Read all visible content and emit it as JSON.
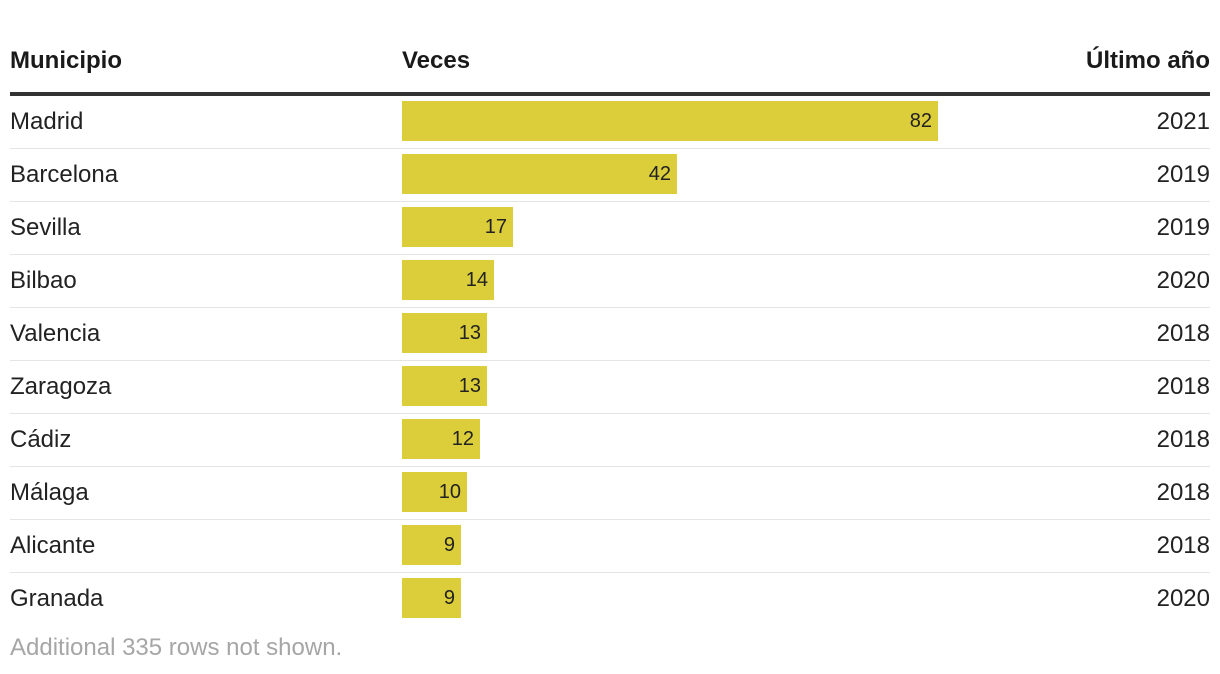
{
  "chart_data": {
    "type": "table",
    "columns": [
      "Municipio",
      "Veces",
      "Último año"
    ],
    "rows": [
      {
        "municipio": "Madrid",
        "veces": 82,
        "year": "2021"
      },
      {
        "municipio": "Barcelona",
        "veces": 42,
        "year": "2019"
      },
      {
        "municipio": "Sevilla",
        "veces": 17,
        "year": "2019"
      },
      {
        "municipio": "Bilbao",
        "veces": 14,
        "year": "2020"
      },
      {
        "municipio": "Valencia",
        "veces": 13,
        "year": "2018"
      },
      {
        "municipio": "Zaragoza",
        "veces": 13,
        "year": "2018"
      },
      {
        "municipio": "Cádiz",
        "veces": 12,
        "year": "2018"
      },
      {
        "municipio": "Málaga",
        "veces": 10,
        "year": "2018"
      },
      {
        "municipio": "Alicante",
        "veces": 9,
        "year": "2018"
      },
      {
        "municipio": "Granada",
        "veces": 9,
        "year": "2020"
      }
    ],
    "bar_color": "#dccd3a",
    "footnote": "Additional 335 rows not shown."
  }
}
